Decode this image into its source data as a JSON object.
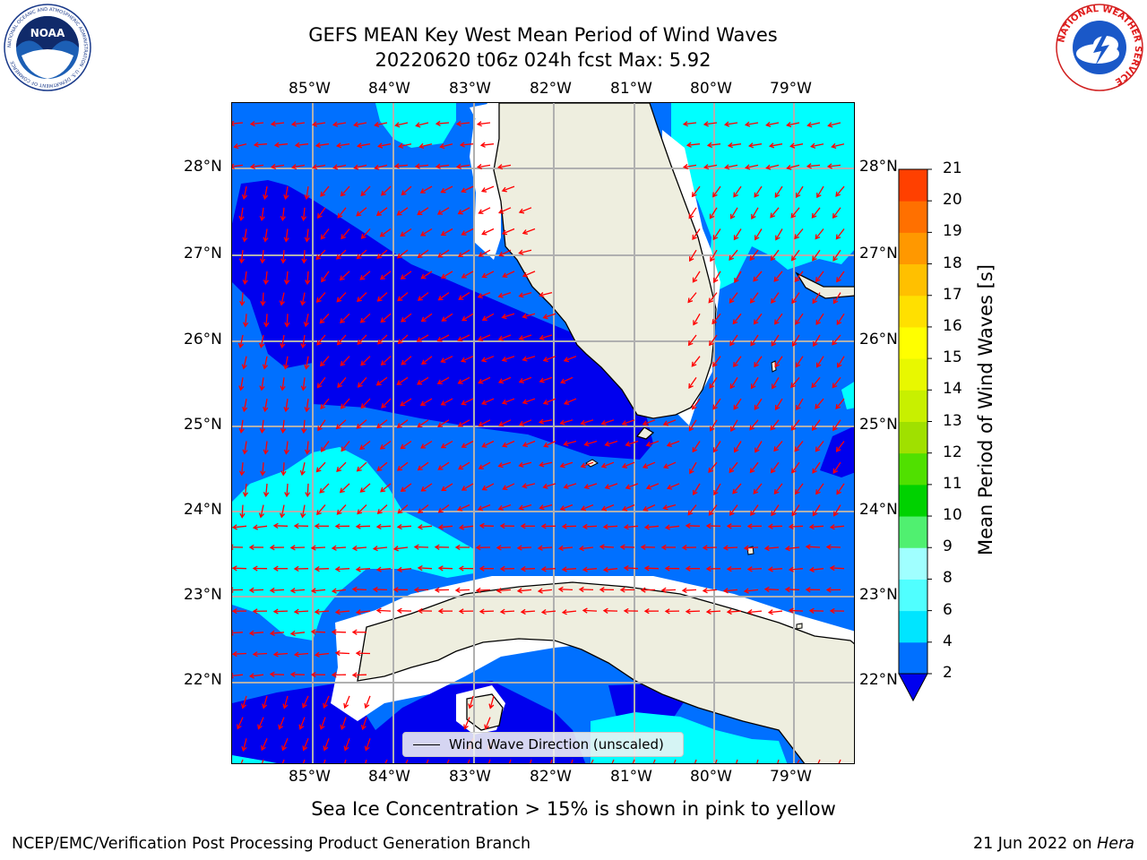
{
  "header": {
    "title_line1": "GEFS MEAN Key West Mean Period of Wind Waves",
    "title_line2": "20220620 t06z 024h fcst   Max: 5.92"
  },
  "logos": {
    "noaa_text": "NOAA",
    "noaa_ring_text": "NATIONAL OCEANIC AND ATMOSPHERIC ADMINISTRATION · U.S. DEPARTMENT OF COMMERCE",
    "nws_ring_text": "NATIONAL WEATHER SERVICE"
  },
  "map": {
    "lon_labels": [
      "85°W",
      "84°W",
      "83°W",
      "82°W",
      "81°W",
      "80°W",
      "79°W"
    ],
    "lat_labels": [
      "28°N",
      "27°N",
      "26°N",
      "25°N",
      "24°N",
      "23°N",
      "22°N"
    ],
    "legend_label": "Wind Wave Direction (unscaled)",
    "colors": {
      "land": "#eeeedf",
      "vector": "#ff0000",
      "grid": "#b0b0b0",
      "coast": "#000000"
    }
  },
  "colorbar": {
    "label": "Mean Period of Wind Waves [s]",
    "ticks": [
      "2",
      "4",
      "6",
      "8",
      "9",
      "10",
      "11",
      "12",
      "13",
      "14",
      "15",
      "16",
      "17",
      "18",
      "19",
      "20",
      "21"
    ],
    "colors": [
      "#0070ff",
      "#00e5ff",
      "#50ffff",
      "#a0ffff",
      "#50f070",
      "#00d200",
      "#50e000",
      "#a0e000",
      "#c8f000",
      "#e8f800",
      "#ffff00",
      "#ffe000",
      "#ffc000",
      "#ff9800",
      "#ff7000",
      "#ff4000"
    ],
    "under_color": "#0000ee"
  },
  "footer": {
    "caption": "Sea Ice Concentration > 15% is shown in pink to yellow",
    "left": "NCEP/EMC/Verification Post Processing Product Generation Branch",
    "date": "21 Jun 2022 on ",
    "machine": "Hera"
  }
}
